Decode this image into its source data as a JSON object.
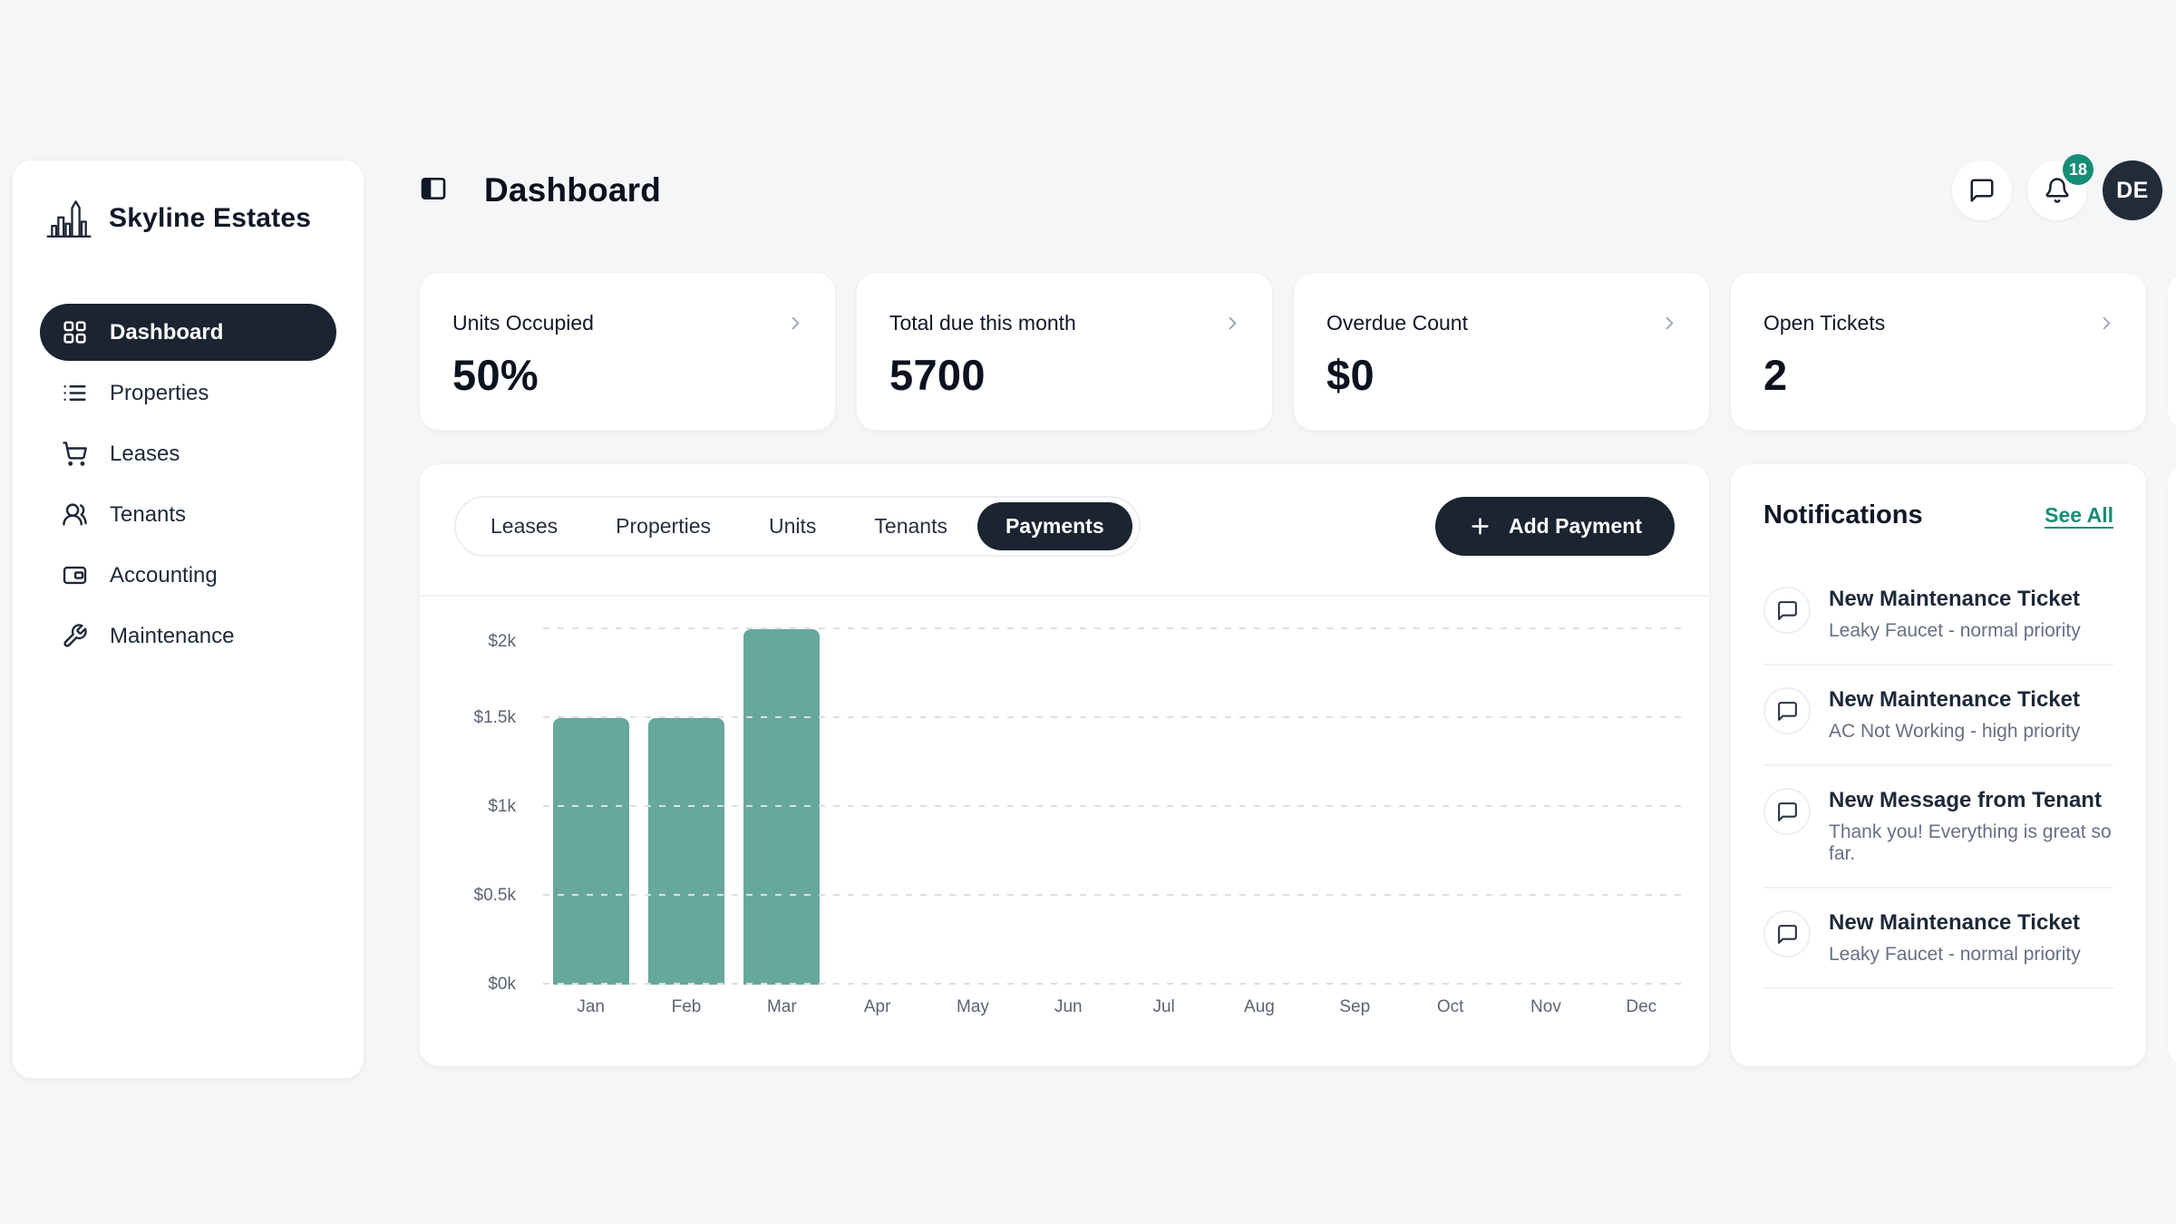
{
  "app": {
    "name": "Skyline Estates"
  },
  "header": {
    "title": "Dashboard",
    "notification_count": "18",
    "avatar_initials": "DE",
    "icons": [
      "panel-left-icon",
      "chat-bubble-icon",
      "bell-icon"
    ]
  },
  "sidebar": {
    "items": [
      {
        "label": "Dashboard",
        "icon": "layout-grid-icon",
        "active": true
      },
      {
        "label": "Properties",
        "icon": "list-icon",
        "active": false
      },
      {
        "label": "Leases",
        "icon": "shopping-cart-icon",
        "active": false
      },
      {
        "label": "Tenants",
        "icon": "users-icon",
        "active": false
      },
      {
        "label": "Accounting",
        "icon": "wallet-icon",
        "active": false
      },
      {
        "label": "Maintenance",
        "icon": "wrench-icon",
        "active": false
      }
    ]
  },
  "stats": {
    "cards": [
      {
        "label": "Units Occupied",
        "value": "50%"
      },
      {
        "label": "Total due this month",
        "value": "5700"
      },
      {
        "label": "Overdue Count",
        "value": "$0"
      },
      {
        "label": "Open Tickets",
        "value": "2"
      }
    ]
  },
  "tabs": {
    "items": [
      {
        "label": "Leases",
        "active": false
      },
      {
        "label": "Properties",
        "active": false
      },
      {
        "label": "Units",
        "active": false
      },
      {
        "label": "Tenants",
        "active": false
      },
      {
        "label": "Payments",
        "active": true
      }
    ],
    "add_button_label": "Add Payment"
  },
  "chart_data": {
    "type": "bar",
    "title": "",
    "xlabel": "",
    "ylabel": "",
    "categories": [
      "Jan",
      "Feb",
      "Mar",
      "Apr",
      "May",
      "Jun",
      "Jul",
      "Aug",
      "Sep",
      "Oct",
      "Nov",
      "Dec"
    ],
    "values": [
      1500,
      1500,
      2000,
      0,
      0,
      0,
      0,
      0,
      0,
      0,
      0,
      0
    ],
    "ylim": [
      0,
      2000
    ],
    "yticks": [
      "$0k",
      "$0.5k",
      "$1k",
      "$1.5k",
      "$2k"
    ],
    "ytick_values": [
      0,
      500,
      1000,
      1500,
      2000
    ],
    "bar_color": "#66a89c",
    "grid": "dashed-horizontal",
    "legend": "none"
  },
  "notifications": {
    "title": "Notifications",
    "see_all_label": "See All",
    "items": [
      {
        "title": "New Maintenance Ticket",
        "subtitle": "Leaky Faucet - normal priority"
      },
      {
        "title": "New Maintenance Ticket",
        "subtitle": "AC Not Working - high priority"
      },
      {
        "title": "New Message from Tenant",
        "subtitle": "Thank you! Everything is great so far."
      },
      {
        "title": "New Maintenance Ticket",
        "subtitle": "Leaky Faucet - normal priority"
      }
    ]
  },
  "colors": {
    "accent_dark": "#1b2430",
    "bar_teal": "#66a89c",
    "badge_green": "#178d77",
    "link_green": "#178d77",
    "page_background": "#f5f6f8",
    "muted_text": "#667085"
  }
}
